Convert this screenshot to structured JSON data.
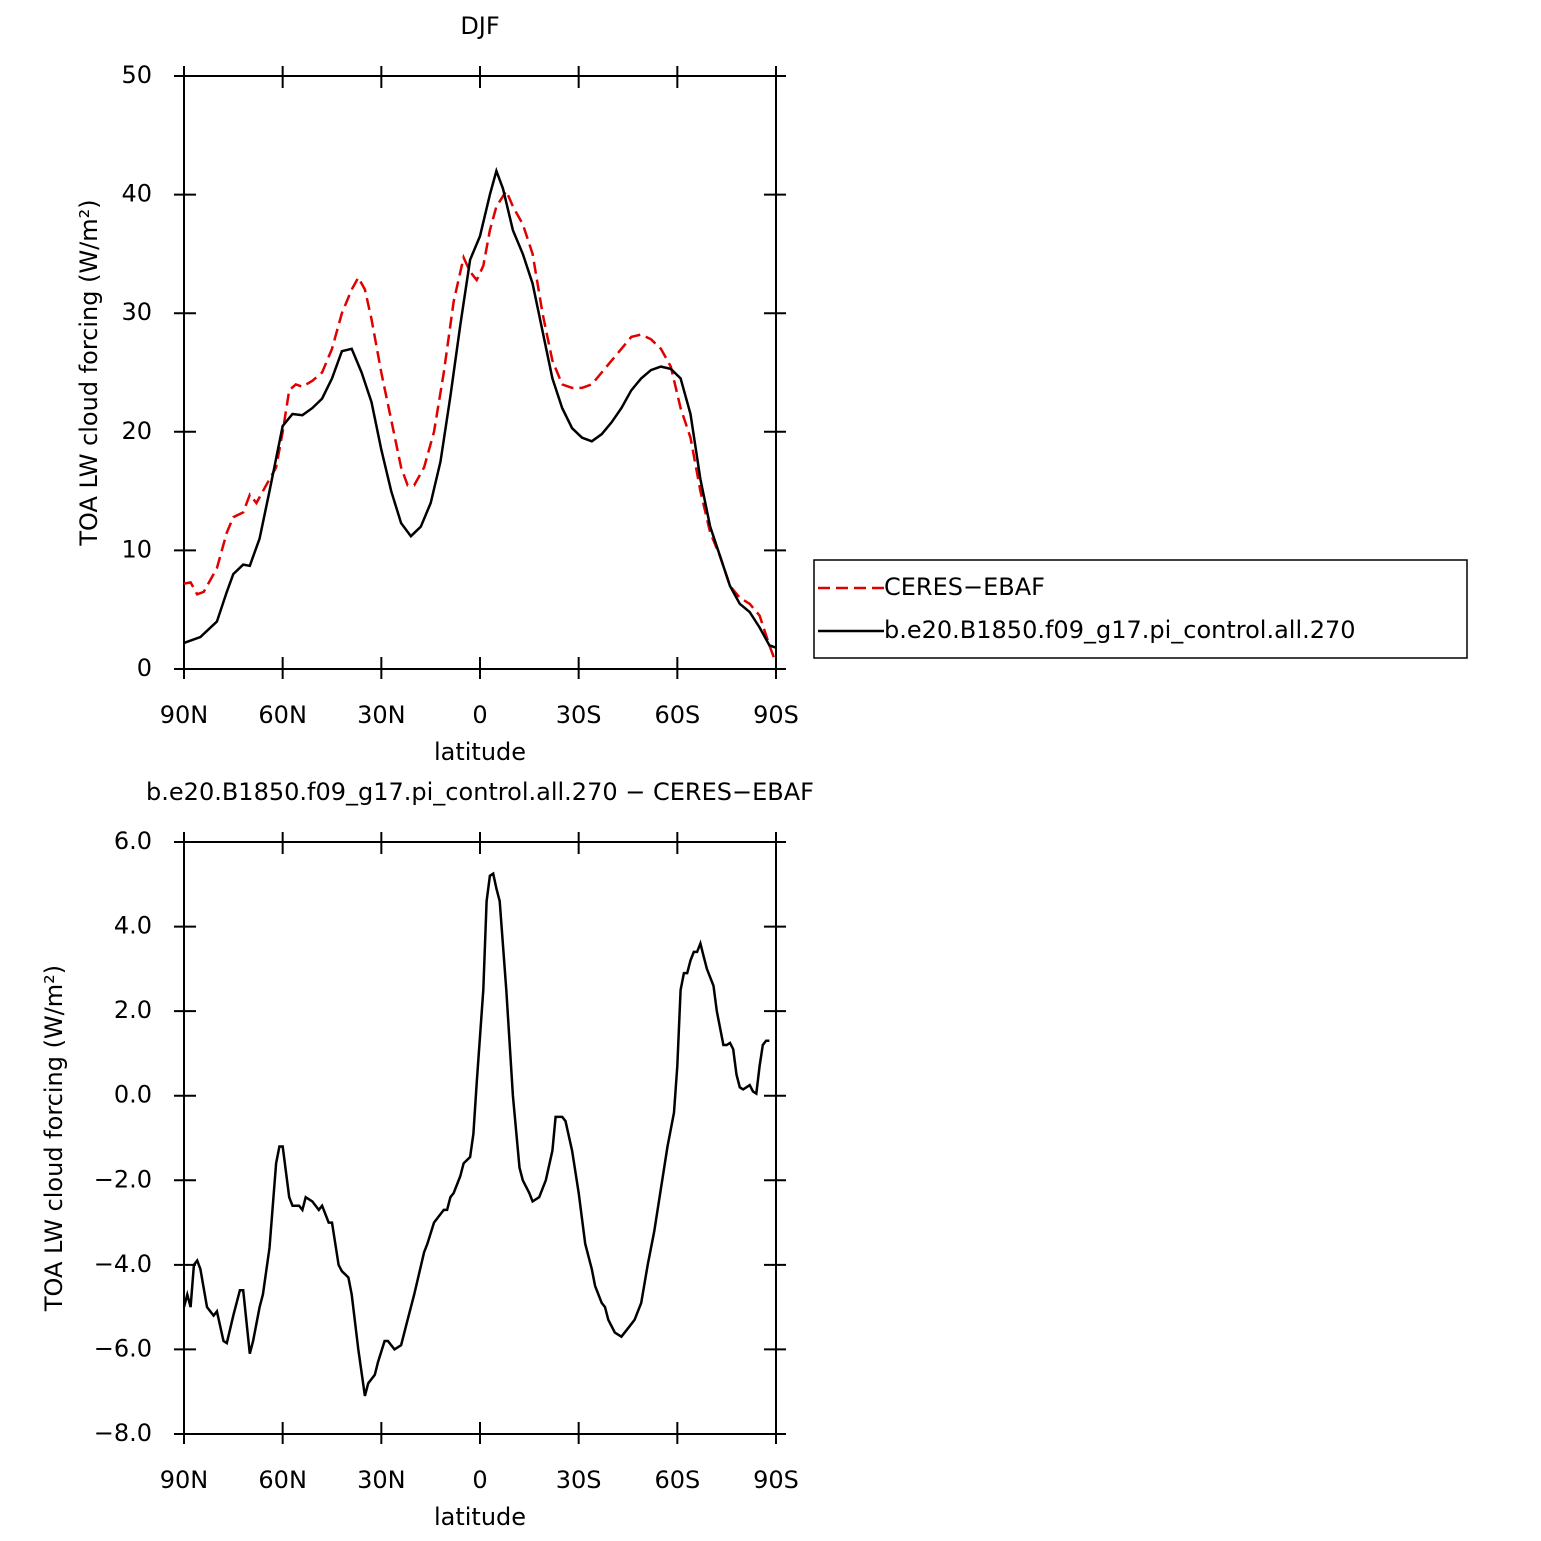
{
  "chart_data": [
    {
      "type": "line",
      "title": "DJF",
      "xlabel": "latitude",
      "ylabel": "TOA LW cloud forcing (W/m²)",
      "xlim": [
        90,
        -90
      ],
      "ylim": [
        0,
        50
      ],
      "xticks": [
        {
          "value": 90,
          "label": "90N"
        },
        {
          "value": 60,
          "label": "60N"
        },
        {
          "value": 30,
          "label": "30N"
        },
        0,
        {
          "value": -30,
          "label": "30S"
        },
        {
          "value": -60,
          "label": "60S"
        },
        {
          "value": -90,
          "label": "90S"
        }
      ],
      "yticks": [
        0,
        10,
        20,
        30,
        40,
        50
      ],
      "legend": "right",
      "series": [
        {
          "name": "CERES−EBAF",
          "color": "#e00000",
          "style": "dashed",
          "x": [
            90,
            88,
            86,
            84,
            80,
            77,
            75,
            72,
            70,
            68,
            65,
            62,
            60,
            58,
            56,
            54,
            51,
            48,
            45,
            42,
            39,
            37,
            35,
            33,
            30,
            27,
            24,
            22,
            20,
            17,
            14,
            11,
            8,
            5,
            3,
            1,
            -1,
            -3,
            -5,
            -8,
            -10,
            -13,
            -16,
            -19,
            -22,
            -25,
            -28,
            -31,
            -34,
            -37,
            -40,
            -43,
            -46,
            -49,
            -52,
            -55,
            -58,
            -61,
            -64,
            -67,
            -70,
            -73,
            -76,
            -79,
            -82,
            -85,
            -88,
            -90
          ],
          "values": [
            7.2,
            7.3,
            6.3,
            6.5,
            8.5,
            11.5,
            12.8,
            13.2,
            14.7,
            14,
            15.5,
            17,
            20,
            23.5,
            24,
            23.8,
            24.3,
            25,
            27,
            30,
            32,
            33,
            32,
            29.5,
            25,
            21,
            17,
            15.5,
            15.5,
            17,
            20,
            25,
            31,
            34.7,
            33.5,
            32.8,
            34,
            37,
            39,
            40.3,
            39,
            37.5,
            35,
            30,
            26,
            24,
            23.7,
            23.7,
            24,
            25,
            26,
            27,
            28,
            28.2,
            27.8,
            27,
            25.5,
            22,
            19.5,
            15,
            11.5,
            9.5,
            7,
            6,
            5.5,
            4.5,
            2,
            0.5
          ]
        },
        {
          "name": "b.e20.B1850.f09_g17.pi_control.all.270",
          "color": "#000000",
          "style": "solid",
          "x": [
            90,
            85,
            80,
            77,
            75,
            72,
            70,
            67,
            64,
            60,
            57,
            54,
            51,
            48,
            45,
            42,
            39,
            36,
            33,
            30,
            27,
            24,
            21,
            18,
            15,
            12,
            9,
            6,
            3,
            0,
            -3,
            -5,
            -7,
            -10,
            -13,
            -16,
            -19,
            -22,
            -25,
            -28,
            -31,
            -34,
            -37,
            -40,
            -43,
            -46,
            -49,
            -52,
            -55,
            -58,
            -61,
            -64,
            -67,
            -70,
            -73,
            -76,
            -79,
            -82,
            -85,
            -88,
            -90
          ],
          "values": [
            2.2,
            2.7,
            4,
            6.5,
            8,
            8.8,
            8.7,
            11,
            15,
            20.5,
            21.5,
            21.4,
            22,
            22.8,
            24.5,
            26.8,
            27,
            25,
            22.5,
            18.5,
            15,
            12.3,
            11.2,
            12,
            14,
            17.5,
            23,
            29,
            34.5,
            36.5,
            40,
            42,
            40.5,
            37,
            35,
            32.5,
            28.5,
            24.5,
            22,
            20.3,
            19.5,
            19.2,
            19.8,
            20.8,
            22,
            23.5,
            24.5,
            25.2,
            25.5,
            25.3,
            24.5,
            21.5,
            16,
            12,
            9.5,
            7,
            5.5,
            4.8,
            3.5,
            2,
            1.8
          ]
        }
      ]
    },
    {
      "type": "line",
      "title": "b.e20.B1850.f09_g17.pi_control.all.270 − CERES−EBAF",
      "xlabel": "latitude",
      "ylabel": "TOA LW cloud forcing (W/m²)",
      "xlim": [
        90,
        -90
      ],
      "ylim": [
        -8,
        6
      ],
      "xticks": [
        {
          "value": 90,
          "label": "90N"
        },
        {
          "value": 60,
          "label": "60N"
        },
        {
          "value": 30,
          "label": "30N"
        },
        0,
        {
          "value": -30,
          "label": "30S"
        },
        {
          "value": -60,
          "label": "60S"
        },
        {
          "value": -90,
          "label": "90S"
        }
      ],
      "yticks": [
        {
          "value": 6,
          "label": "6.0"
        },
        {
          "value": 4,
          "label": "4.0"
        },
        {
          "value": 2,
          "label": "2.0"
        },
        {
          "value": 0,
          "label": "0.0"
        },
        {
          "value": -2,
          "label": "−2.0"
        },
        {
          "value": -4,
          "label": "−4.0"
        },
        {
          "value": -6,
          "label": "−6.0"
        },
        {
          "value": -8,
          "label": "−8.0"
        }
      ],
      "color": "#000000",
      "x": [
        90,
        89,
        88,
        87,
        86,
        85,
        83,
        81,
        80,
        78,
        77,
        75,
        73,
        72,
        70,
        69,
        67,
        66,
        64,
        62,
        61,
        60,
        58,
        57,
        55,
        54,
        53,
        51,
        49,
        48,
        46,
        45,
        43,
        42,
        40,
        39,
        37,
        35,
        34,
        32,
        31,
        29,
        28,
        26,
        24,
        22,
        20,
        17,
        16,
        14,
        12,
        11,
        10,
        9,
        8,
        6,
        5,
        3,
        2,
        1,
        -1,
        -2,
        -3,
        -4,
        -5,
        -6,
        -8,
        -10,
        -12,
        -13,
        -15,
        -16,
        -18,
        -20,
        -22,
        -23,
        -25,
        -26,
        -28,
        -30,
        -32,
        -34,
        -35,
        -37,
        -38,
        -39,
        -41,
        -43,
        -45,
        -47,
        -49,
        -51,
        -53,
        -55,
        -57,
        -59,
        -60,
        -61,
        -62,
        -63,
        -64,
        -65,
        -66,
        -67,
        -68,
        -69,
        -71,
        -72,
        -74,
        -75,
        -76,
        -77,
        -78,
        -79,
        -80,
        -81,
        -82,
        -83,
        -84,
        -85,
        -86,
        -87,
        -88
      ],
      "values": [
        -5,
        -4.7,
        -5,
        -4,
        -3.9,
        -4.1,
        -5,
        -5.2,
        -5.1,
        -5.8,
        -5.85,
        -5.2,
        -4.6,
        -4.6,
        -6.1,
        -5.8,
        -5,
        -4.7,
        -3.6,
        -1.6,
        -1.2,
        -1.2,
        -2.4,
        -2.6,
        -2.6,
        -2.7,
        -2.4,
        -2.5,
        -2.7,
        -2.6,
        -3,
        -3,
        -4,
        -4.15,
        -4.3,
        -4.7,
        -6,
        -7.1,
        -6.8,
        -6.6,
        -6.3,
        -5.8,
        -5.8,
        -6,
        -5.9,
        -5.3,
        -4.7,
        -3.7,
        -3.5,
        -3,
        -2.8,
        -2.7,
        -2.7,
        -2.4,
        -2.3,
        -1.9,
        -1.6,
        -1.45,
        -0.9,
        0.3,
        2.5,
        4.6,
        5.2,
        5.25,
        4.9,
        4.6,
        2.5,
        0,
        -1.7,
        -2,
        -2.3,
        -2.5,
        -2.4,
        -2,
        -1.3,
        -0.5,
        -0.5,
        -0.6,
        -1.3,
        -2.3,
        -3.5,
        -4.1,
        -4.5,
        -4.9,
        -5,
        -5.3,
        -5.6,
        -5.7,
        -5.5,
        -5.3,
        -4.9,
        -4,
        -3.2,
        -2.2,
        -1.2,
        -0.4,
        0.7,
        2.5,
        2.9,
        2.9,
        3.2,
        3.4,
        3.4,
        3.6,
        3.3,
        3,
        2.6,
        2,
        1.2,
        1.2,
        1.25,
        1.1,
        0.5,
        0.2,
        0.15,
        0.2,
        0.25,
        0.1,
        0.05,
        0.7,
        1.2,
        1.3,
        1.3
      ]
    }
  ]
}
